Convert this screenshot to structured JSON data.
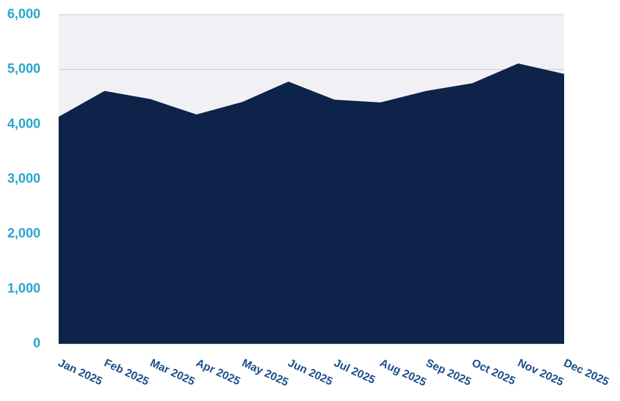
{
  "chart_data": {
    "type": "area",
    "categories": [
      "Jan 2025",
      "Feb 2025",
      "Mar 2025",
      "Apr 2025",
      "May 2025",
      "Jun 2025",
      "Jul 2025",
      "Aug 2025",
      "Sep 2025",
      "Oct 2025",
      "Nov 2025",
      "Dec 2025"
    ],
    "values": [
      4140,
      4610,
      4460,
      4180,
      4410,
      4780,
      4450,
      4400,
      4610,
      4750,
      5110,
      4920
    ],
    "color": "#0e2349",
    "ylim": [
      0,
      6000
    ],
    "yticks": [
      0,
      {
        "value": 1000,
        "label": "1,000"
      },
      {
        "value": 2000,
        "label": "2,000"
      },
      {
        "value": 3000,
        "label": "3,000"
      },
      {
        "value": 4000,
        "label": "4,000"
      },
      {
        "value": 5000,
        "label": "5,000"
      },
      {
        "value": 6000,
        "label": "6,000"
      }
    ],
    "grid": true
  }
}
